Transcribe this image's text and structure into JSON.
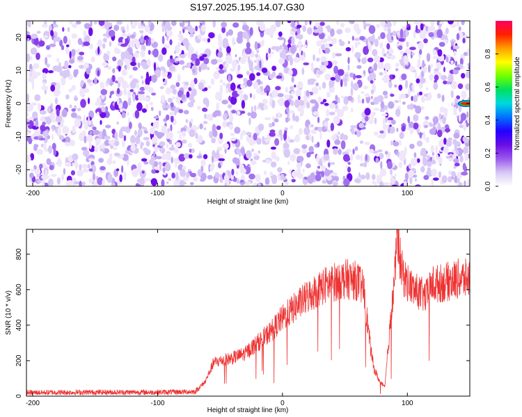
{
  "title": "S197.2025.195.14.07.G30",
  "chart_data": [
    {
      "type": "heatmap",
      "xlabel": "Height of straight line (km)",
      "ylabel": "Frequency (Hz)",
      "xlim": [
        -205,
        150
      ],
      "ylim": [
        -25,
        25
      ],
      "xticks": [
        -200,
        -100,
        0,
        100
      ],
      "yticks": [
        -20,
        -10,
        0,
        10,
        20
      ],
      "colorbar": {
        "label": "Normalized spectral amplitude",
        "range": [
          0.0,
          1.0
        ],
        "ticks": [
          "0.0",
          "0.2",
          "0.4",
          "0.6",
          "0.8"
        ],
        "tick_values": [
          0.0,
          0.2,
          0.4,
          0.6,
          0.8
        ],
        "colormap": [
          "#ffffff",
          "#d8c8f5",
          "#9a58ec",
          "#6a0ee6",
          "#2200ff",
          "#0070ff",
          "#00d8e0",
          "#00e060",
          "#70ff00",
          "#ffff00",
          "#ffa000",
          "#ff2000",
          "#ff0060"
        ]
      },
      "description_values": {
        "background_amplitude": [
          0.0,
          0.15
        ],
        "peak": {
          "x": 147,
          "y": 0,
          "value": 0.95
        }
      },
      "colors": {
        "speckle_light": "#d9c9f6",
        "speckle_mid": "#a070ee",
        "speckle_dark": "#7010e8",
        "peak_core": "#ff2000",
        "peak_ring": "#00d040"
      }
    },
    {
      "type": "line",
      "xlabel": "Height of straight line (km)",
      "ylabel": "SNR (10 * v/v)",
      "xlim": [
        -205,
        150
      ],
      "ylim": [
        0,
        940
      ],
      "xticks": [
        -200,
        -100,
        0,
        100
      ],
      "yticks": [
        0,
        200,
        400,
        600,
        800
      ],
      "line_color": "#ee3333",
      "series": [
        {
          "x": [
            -205,
            -150,
            -100,
            -70,
            -62,
            -55,
            -40,
            -30,
            -20,
            -10,
            0,
            10,
            20,
            30,
            40,
            50,
            60,
            65,
            70,
            73,
            78,
            82,
            85,
            90,
            92,
            95,
            98,
            105,
            110,
            115,
            120,
            130,
            140,
            150
          ],
          "y": [
            20,
            22,
            22,
            25,
            80,
            190,
            215,
            240,
            300,
            360,
            440,
            500,
            560,
            610,
            640,
            660,
            650,
            600,
            300,
            160,
            80,
            50,
            300,
            680,
            930,
            720,
            660,
            600,
            580,
            560,
            630,
            640,
            660,
            660
          ]
        }
      ]
    }
  ]
}
